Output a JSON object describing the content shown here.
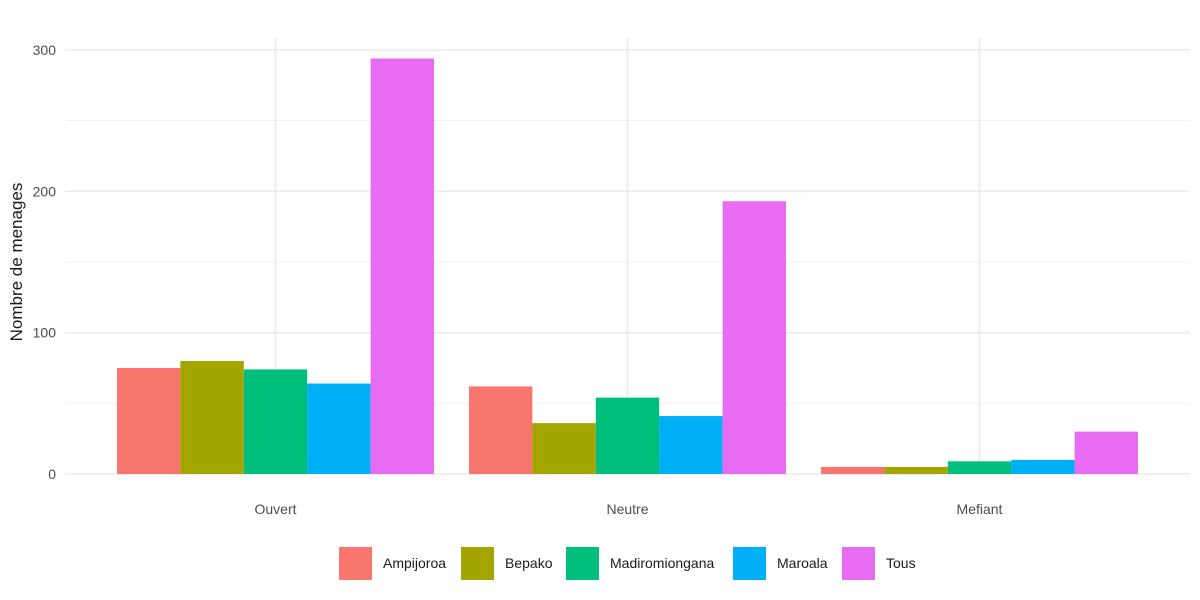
{
  "chart_data": {
    "type": "bar",
    "title": "",
    "xlabel": "",
    "ylabel": "Nombre de menages",
    "categories": [
      "Ouvert",
      "Neutre",
      "Mefiant"
    ],
    "series": [
      {
        "name": "Ampijoroa",
        "color": "#F8766D",
        "values": [
          75,
          62,
          5
        ]
      },
      {
        "name": "Bepako",
        "color": "#A3A500",
        "values": [
          80,
          36,
          5
        ]
      },
      {
        "name": "Madiromiongana",
        "color": "#00BF7D",
        "values": [
          74,
          54,
          9
        ]
      },
      {
        "name": "Maroala",
        "color": "#00B0F6",
        "values": [
          64,
          41,
          10
        ]
      },
      {
        "name": "Tous",
        "color": "#E76BF3",
        "values": [
          294,
          193,
          30
        ]
      }
    ],
    "ylim": [
      0,
      300
    ],
    "yticks": [
      0,
      100,
      200,
      300
    ],
    "grid": true,
    "legend_position": "bottom"
  }
}
